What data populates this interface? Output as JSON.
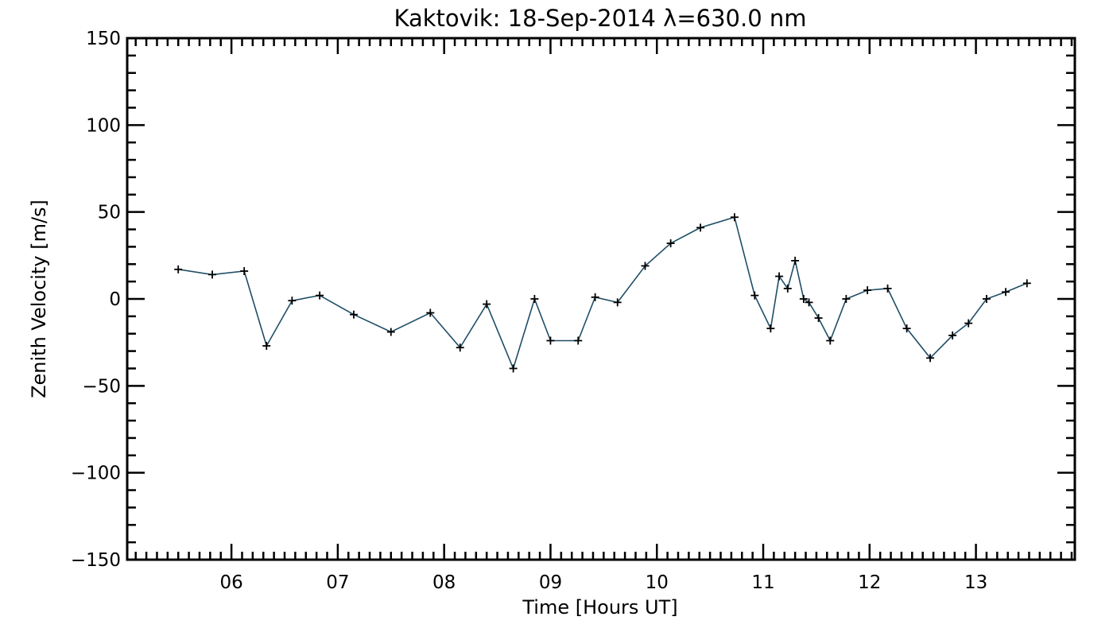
{
  "chart_data": {
    "type": "line",
    "title": "Kaktovik: 18-Sep-2014 λ=630.0 nm",
    "xlabel": "Time [Hours UT]",
    "ylabel": "Zenith Velocity [m/s]",
    "xlim": [
      5.02,
      13.93
    ],
    "ylim": [
      -150,
      150
    ],
    "x_ticks": [
      6,
      7,
      8,
      9,
      10,
      11,
      12,
      13
    ],
    "x_tick_labels": [
      "06",
      "07",
      "08",
      "09",
      "10",
      "11",
      "12",
      "13"
    ],
    "y_ticks": [
      -150,
      -100,
      -50,
      0,
      50,
      100,
      150
    ],
    "y_tick_labels": [
      "−150",
      "−100",
      "−50",
      "0",
      "50",
      "100",
      "150"
    ],
    "grid": false,
    "line_color": "#1f4e66",
    "marker": "plus",
    "series": [
      {
        "x": [
          5.5,
          5.82,
          6.12,
          6.33,
          6.57,
          6.83,
          7.15,
          7.5,
          7.87,
          8.15,
          8.4,
          8.65,
          8.85,
          9.0,
          9.26,
          9.42,
          9.63,
          9.89,
          10.13,
          10.41,
          10.73,
          10.92,
          11.07,
          11.15,
          11.23,
          11.3,
          11.38,
          11.43,
          11.52,
          11.63,
          11.78,
          11.98,
          12.17,
          12.35,
          12.57,
          12.78,
          12.93,
          13.1,
          13.28,
          13.48
        ],
        "y": [
          17,
          14,
          16,
          -27,
          -1,
          2,
          -9,
          -19,
          -8,
          -28,
          -3,
          -40,
          0,
          -24,
          -24,
          1,
          -2,
          19,
          32,
          41,
          47,
          2,
          -17,
          13,
          6,
          22,
          0,
          -2,
          -11,
          -24,
          0,
          5,
          6,
          -17,
          -34,
          -21,
          -14,
          0,
          4,
          9
        ]
      }
    ]
  }
}
